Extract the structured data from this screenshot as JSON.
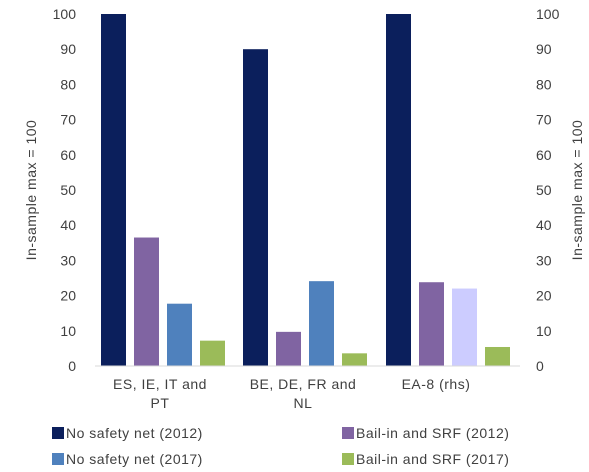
{
  "chart_data": {
    "type": "bar",
    "categories": [
      [
        "ES, IE, IT and",
        "PT"
      ],
      [
        "BE, DE, FR and",
        "NL"
      ],
      [
        "EA-8 (rhs)"
      ]
    ],
    "series": [
      {
        "name": "No safety net (2012)",
        "color": "#0b1f5c",
        "values": [
          100,
          90,
          100
        ]
      },
      {
        "name": "Bail-in and SRF (2012)",
        "color": "#8064a2",
        "values": [
          36.5,
          9.7,
          23.8
        ]
      },
      {
        "name": "No safety net (2017)",
        "color": "#4f81bd",
        "values": [
          17.7,
          24.1,
          22
        ]
      },
      {
        "name": "Bail-in and SRF (2017)",
        "color": "#9bbb59",
        "values": [
          7.2,
          3.6,
          5.4
        ]
      }
    ],
    "category_overrides": [
      null,
      null,
      [
        null,
        null,
        {
          "color": "#ccccff"
        },
        null
      ]
    ],
    "ylabel": "In-sample max = 100",
    "y2label": "In-sample max = 100",
    "ylim": [
      0,
      100
    ],
    "yticks": [
      "0",
      "10",
      "20",
      "30",
      "40",
      "50",
      "60",
      "70",
      "80",
      "90",
      "100"
    ],
    "grid": false,
    "legend_placement": "bottom"
  }
}
